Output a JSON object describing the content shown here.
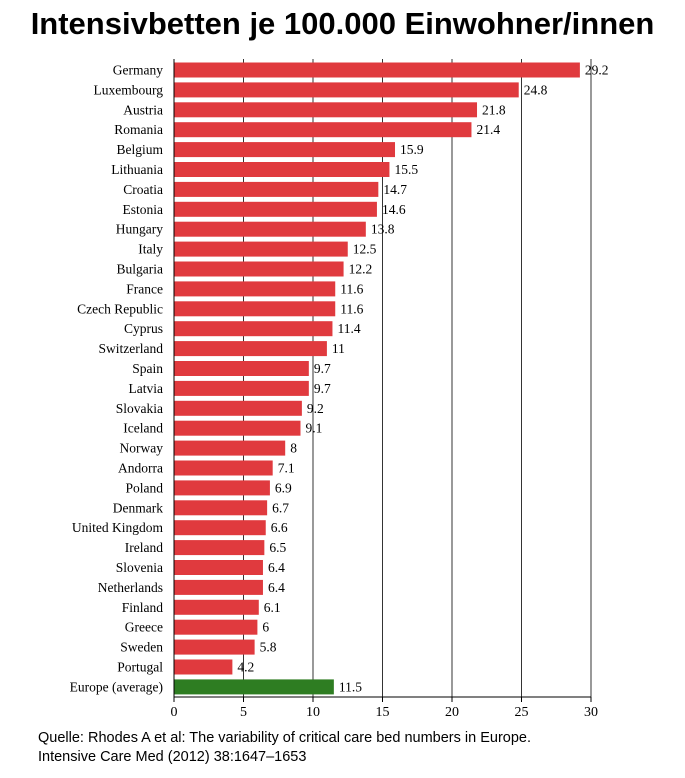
{
  "title": "Intensivbetten je 100.000 Einwohner/innen",
  "source_line1": "Quelle: Rhodes A et al: The variability of critical care bed numbers in Europe.",
  "source_line2": "Intensive Care Med (2012) 38:1647–1653",
  "colors": {
    "bar": "#e03a3e",
    "highlight": "#2e7d22",
    "grid": "#000000"
  },
  "chart_data": {
    "type": "bar",
    "orientation": "horizontal",
    "categories": [
      "Germany",
      "Luxembourg",
      "Austria",
      "Romania",
      "Belgium",
      "Lithuania",
      "Croatia",
      "Estonia",
      "Hungary",
      "Italy",
      "Bulgaria",
      "France",
      "Czech Republic",
      "Cyprus",
      "Switzerland",
      "Spain",
      "Latvia",
      "Slovakia",
      "Iceland",
      "Norway",
      "Andorra",
      "Poland",
      "Denmark",
      "United Kingdom",
      "Ireland",
      "Slovenia",
      "Netherlands",
      "Finland",
      "Greece",
      "Sweden",
      "Portugal",
      "Europe (average)"
    ],
    "values": [
      29.2,
      24.8,
      21.8,
      21.4,
      15.9,
      15.5,
      14.7,
      14.6,
      13.8,
      12.5,
      12.2,
      11.6,
      11.6,
      11.4,
      11,
      9.7,
      9.7,
      9.2,
      9.1,
      8,
      7.1,
      6.9,
      6.7,
      6.6,
      6.5,
      6.4,
      6.4,
      6.1,
      6,
      5.8,
      4.2,
      11.5
    ],
    "value_labels": [
      "29.2",
      "24.8",
      "21.8",
      "21.4",
      "15.9",
      "15.5",
      "14.7",
      "14.6",
      "13.8",
      "12.5",
      "12.2",
      "11.6",
      "11.6",
      "11.4",
      "11",
      "9.7",
      "9.7",
      "9.2",
      "9.1",
      "8",
      "7.1",
      "6.9",
      "6.7",
      "6.6",
      "6.5",
      "6.4",
      "6.4",
      "6.1",
      "6",
      "5.8",
      "4.2",
      "11.5"
    ],
    "highlight": "Europe (average)",
    "xlim": [
      0,
      30
    ],
    "xticks": [
      0,
      5,
      10,
      15,
      20,
      25,
      30
    ],
    "grid": "vertical"
  }
}
